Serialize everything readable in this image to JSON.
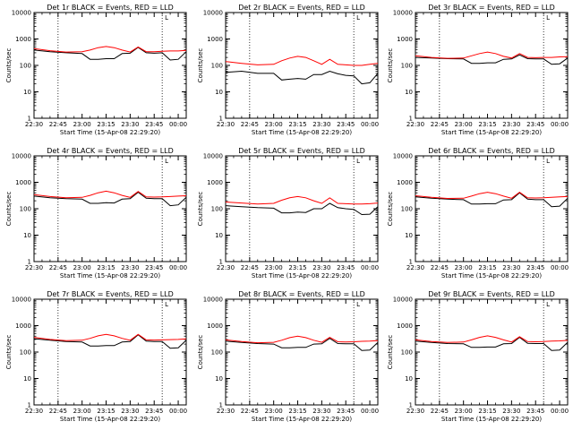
{
  "figure": {
    "x_tick_labels": [
      "22:30",
      "22:45",
      "23:00",
      "23:15",
      "23:30",
      "23:45",
      "00:00"
    ],
    "y_tick_labels": [
      "1",
      "10",
      "100",
      "1000",
      "10000"
    ],
    "xlabel": "Start Time (15-Apr-08 22:29:20)",
    "ylabel": "Counts/sec",
    "colors": {
      "events": "#000000",
      "lld": "#ff0000"
    },
    "dotted_vertical_lines": [
      "22:45",
      "23:50"
    ],
    "corner_marker": "L"
  },
  "chart_data": [
    {
      "type": "line",
      "title": "Det 1r BLACK = Events, RED = LLD",
      "xlabel": "Start Time (15-Apr-08 22:29:20)",
      "ylabel": "Counts/sec",
      "x_range": [
        "22:30",
        "00:05"
      ],
      "ylim": [
        1,
        10000
      ],
      "y_scale": "log",
      "x": [
        "22:30",
        "22:40",
        "22:50",
        "23:00",
        "23:05",
        "23:10",
        "23:15",
        "23:20",
        "23:25",
        "23:30",
        "23:35",
        "23:40",
        "23:45",
        "23:50",
        "23:55",
        "00:00",
        "00:05"
      ],
      "series": [
        {
          "name": "Events",
          "values": [
            380,
            330,
            300,
            280,
            170,
            170,
            180,
            180,
            280,
            290,
            480,
            300,
            290,
            300,
            160,
            170,
            330
          ]
        },
        {
          "name": "LLD",
          "values": [
            430,
            360,
            320,
            330,
            380,
            470,
            520,
            470,
            380,
            320,
            500,
            330,
            330,
            340,
            350,
            350,
            370
          ]
        }
      ]
    },
    {
      "type": "line",
      "title": "Det 2r BLACK = Events, RED = LLD",
      "xlabel": "Start Time (15-Apr-08 22:29:20)",
      "ylabel": "Counts/sec",
      "x_range": [
        "22:30",
        "00:05"
      ],
      "ylim": [
        1,
        10000
      ],
      "y_scale": "log",
      "x": [
        "22:30",
        "22:40",
        "22:50",
        "23:00",
        "23:05",
        "23:10",
        "23:15",
        "23:20",
        "23:25",
        "23:30",
        "23:35",
        "23:40",
        "23:45",
        "23:50",
        "23:55",
        "00:00",
        "00:05"
      ],
      "series": [
        {
          "name": "Events",
          "values": [
            55,
            60,
            50,
            50,
            28,
            30,
            32,
            30,
            45,
            45,
            60,
            48,
            42,
            40,
            20,
            22,
            50
          ]
        },
        {
          "name": "LLD",
          "values": [
            140,
            120,
            105,
            110,
            150,
            190,
            220,
            200,
            150,
            110,
            170,
            110,
            105,
            100,
            100,
            110,
            120
          ]
        }
      ]
    },
    {
      "type": "line",
      "title": "Det 3r BLACK = Events, RED = LLD",
      "xlabel": "Start Time (15-Apr-08 22:29:20)",
      "ylabel": "Counts/sec",
      "x_range": [
        "22:30",
        "00:05"
      ],
      "ylim": [
        1,
        10000
      ],
      "y_scale": "log",
      "x": [
        "22:30",
        "22:40",
        "22:50",
        "23:00",
        "23:05",
        "23:10",
        "23:15",
        "23:20",
        "23:25",
        "23:30",
        "23:35",
        "23:40",
        "23:45",
        "23:50",
        "23:55",
        "00:00",
        "00:05"
      ],
      "series": [
        {
          "name": "Events",
          "values": [
            200,
            190,
            180,
            175,
            120,
            120,
            125,
            125,
            170,
            175,
            250,
            180,
            175,
            175,
            110,
            115,
            190
          ]
        },
        {
          "name": "LLD",
          "values": [
            230,
            200,
            185,
            190,
            230,
            280,
            320,
            280,
            220,
            190,
            280,
            200,
            195,
            200,
            200,
            210,
            215
          ]
        }
      ]
    },
    {
      "type": "line",
      "title": "Det 4r BLACK = Events, RED = LLD",
      "xlabel": "Start Time (15-Apr-08 22:29:20)",
      "ylabel": "Counts/sec",
      "x_range": [
        "22:30",
        "00:05"
      ],
      "ylim": [
        1,
        10000
      ],
      "y_scale": "log",
      "x": [
        "22:30",
        "22:40",
        "22:50",
        "23:00",
        "23:05",
        "23:10",
        "23:15",
        "23:20",
        "23:25",
        "23:30",
        "23:35",
        "23:40",
        "23:45",
        "23:50",
        "23:55",
        "00:00",
        "00:05"
      ],
      "series": [
        {
          "name": "Events",
          "values": [
            300,
            260,
            240,
            230,
            160,
            160,
            170,
            165,
            230,
            240,
            420,
            250,
            240,
            240,
            130,
            140,
            270
          ]
        },
        {
          "name": "LLD",
          "values": [
            340,
            290,
            260,
            270,
            320,
            400,
            460,
            400,
            320,
            270,
            450,
            280,
            275,
            280,
            290,
            300,
            310
          ]
        }
      ]
    },
    {
      "type": "line",
      "title": "Det 5r BLACK = Events, RED = LLD",
      "xlabel": "Start Time (15-Apr-08 22:29:20)",
      "ylabel": "Counts/sec",
      "x_range": [
        "22:30",
        "00:05"
      ],
      "ylim": [
        1,
        10000
      ],
      "y_scale": "log",
      "x": [
        "22:30",
        "22:40",
        "22:50",
        "23:00",
        "23:05",
        "23:10",
        "23:15",
        "23:20",
        "23:25",
        "23:30",
        "23:35",
        "23:40",
        "23:45",
        "23:50",
        "23:55",
        "00:00",
        "00:05"
      ],
      "series": [
        {
          "name": "Events",
          "values": [
            130,
            120,
            110,
            105,
            70,
            70,
            75,
            72,
            100,
            100,
            160,
            110,
            100,
            95,
            60,
            62,
            120
          ]
        },
        {
          "name": "LLD",
          "values": [
            180,
            165,
            150,
            160,
            210,
            260,
            290,
            260,
            200,
            160,
            260,
            160,
            155,
            150,
            150,
            155,
            165
          ]
        }
      ]
    },
    {
      "type": "line",
      "title": "Det 6r BLACK = Events, RED = LLD",
      "xlabel": "Start Time (15-Apr-08 22:29:20)",
      "ylabel": "Counts/sec",
      "x_range": [
        "22:30",
        "00:05"
      ],
      "ylim": [
        1,
        10000
      ],
      "y_scale": "log",
      "x": [
        "22:30",
        "22:40",
        "22:50",
        "23:00",
        "23:05",
        "23:10",
        "23:15",
        "23:20",
        "23:25",
        "23:30",
        "23:35",
        "23:40",
        "23:45",
        "23:50",
        "23:55",
        "00:00",
        "00:05"
      ],
      "series": [
        {
          "name": "Events",
          "values": [
            280,
            250,
            230,
            220,
            150,
            150,
            155,
            155,
            215,
            220,
            400,
            230,
            220,
            220,
            120,
            125,
            250
          ]
        },
        {
          "name": "LLD",
          "values": [
            310,
            270,
            245,
            250,
            300,
            370,
            420,
            370,
            300,
            250,
            420,
            260,
            255,
            260,
            270,
            280,
            290
          ]
        }
      ]
    },
    {
      "type": "line",
      "title": "Det 7r BLACK = Events, RED = LLD",
      "xlabel": "Start Time (15-Apr-08 22:29:20)",
      "ylabel": "Counts/sec",
      "x_range": [
        "22:30",
        "00:05"
      ],
      "ylim": [
        1,
        10000
      ],
      "y_scale": "log",
      "x": [
        "22:30",
        "22:40",
        "22:50",
        "23:00",
        "23:05",
        "23:10",
        "23:15",
        "23:20",
        "23:25",
        "23:30",
        "23:35",
        "23:40",
        "23:45",
        "23:50",
        "23:55",
        "00:00",
        "00:05"
      ],
      "series": [
        {
          "name": "Events",
          "values": [
            320,
            280,
            250,
            240,
            170,
            170,
            175,
            175,
            240,
            250,
            450,
            260,
            250,
            250,
            140,
            145,
            280
          ]
        },
        {
          "name": "LLD",
          "values": [
            360,
            300,
            270,
            280,
            330,
            410,
            470,
            410,
            330,
            280,
            470,
            290,
            285,
            290,
            295,
            300,
            315
          ]
        }
      ]
    },
    {
      "type": "line",
      "title": "Det 8r BLACK = Events, RED = LLD",
      "xlabel": "Start Time (15-Apr-08 22:29:20)",
      "ylabel": "Counts/sec",
      "x_range": [
        "22:30",
        "00:05"
      ],
      "ylim": [
        1,
        10000
      ],
      "y_scale": "log",
      "x": [
        "22:30",
        "22:40",
        "22:50",
        "23:00",
        "23:05",
        "23:10",
        "23:15",
        "23:20",
        "23:25",
        "23:30",
        "23:35",
        "23:40",
        "23:45",
        "23:50",
        "23:55",
        "00:00",
        "00:05"
      ],
      "series": [
        {
          "name": "Events",
          "values": [
            260,
            230,
            210,
            200,
            145,
            145,
            150,
            150,
            200,
            205,
            330,
            210,
            205,
            205,
            115,
            120,
            230
          ]
        },
        {
          "name": "LLD",
          "values": [
            290,
            250,
            225,
            235,
            280,
            350,
            400,
            350,
            280,
            235,
            360,
            245,
            240,
            245,
            255,
            260,
            270
          ]
        }
      ]
    },
    {
      "type": "line",
      "title": "Det 9r BLACK = Events, RED = LLD",
      "xlabel": "Start Time (15-Apr-08 22:29:20)",
      "ylabel": "Counts/sec",
      "x_range": [
        "22:30",
        "00:05"
      ],
      "ylim": [
        1,
        10000
      ],
      "y_scale": "log",
      "x": [
        "22:30",
        "22:40",
        "22:50",
        "23:00",
        "23:05",
        "23:10",
        "23:15",
        "23:20",
        "23:25",
        "23:30",
        "23:35",
        "23:40",
        "23:45",
        "23:50",
        "23:55",
        "00:00",
        "00:05"
      ],
      "series": [
        {
          "name": "Events",
          "values": [
            260,
            230,
            210,
            205,
            150,
            150,
            155,
            155,
            205,
            210,
            360,
            215,
            210,
            210,
            115,
            120,
            235
          ]
        },
        {
          "name": "LLD",
          "values": [
            290,
            250,
            230,
            240,
            290,
            360,
            410,
            360,
            290,
            240,
            380,
            250,
            245,
            250,
            260,
            265,
            275
          ]
        }
      ]
    }
  ]
}
